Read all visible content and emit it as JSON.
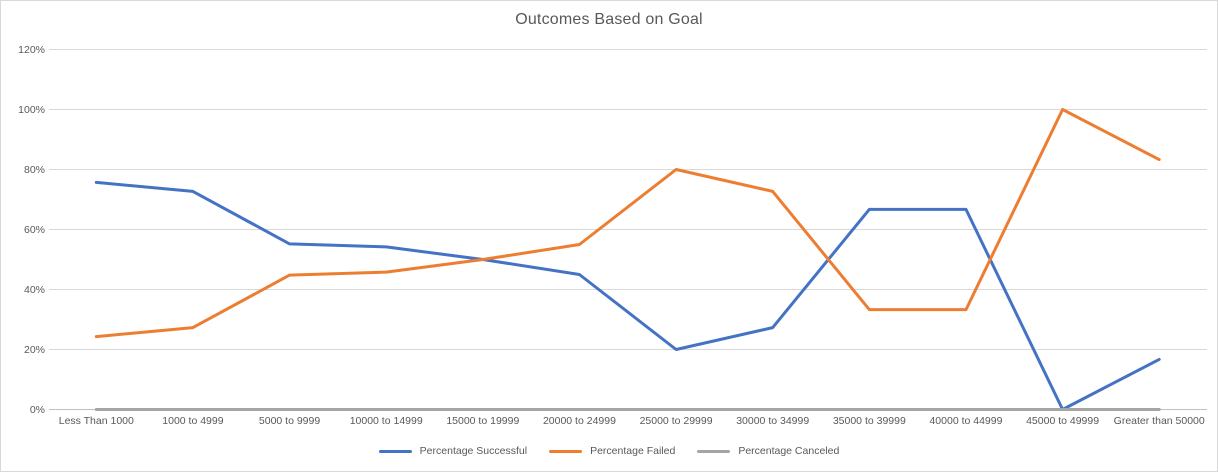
{
  "chart_data": {
    "type": "line",
    "title": "Outcomes Based on Goal",
    "categories": [
      "Less Than 1000",
      "1000 to 4999",
      "5000 to 9999",
      "10000 to 14999",
      "15000 to 19999",
      "20000 to 24999",
      "25000 to 29999",
      "30000 to 34999",
      "35000 to 39999",
      "40000 to 44999",
      "45000 to 49999",
      "Greater than 50000"
    ],
    "series": [
      {
        "name": "Percentage Successful",
        "color": "#4472C4",
        "values": [
          75.7,
          72.7,
          55.2,
          54.2,
          50.0,
          45.0,
          20.0,
          27.3,
          66.7,
          66.7,
          0.0,
          16.7
        ]
      },
      {
        "name": "Percentage Failed",
        "color": "#ED7D31",
        "values": [
          24.3,
          27.3,
          44.8,
          45.8,
          50.0,
          55.0,
          80.0,
          72.7,
          33.3,
          33.3,
          100.0,
          83.3
        ]
      },
      {
        "name": "Percentage Canceled",
        "color": "#A5A5A5",
        "values": [
          0.0,
          0.0,
          0.0,
          0.0,
          0.0,
          0.0,
          0.0,
          0.0,
          0.0,
          0.0,
          0.0,
          0.0
        ]
      }
    ],
    "y_ticks": [
      "0%",
      "20%",
      "40%",
      "60%",
      "80%",
      "100%",
      "120%"
    ],
    "ylim": [
      0,
      120
    ],
    "y_tick_step": 20,
    "grid": true,
    "legend_position": "bottom"
  },
  "colors": {
    "gridline": "#D9D9D9",
    "axis": "#BFBFBF",
    "text": "#595959",
    "background": "#FFFFFF",
    "border": "#D9D9D9"
  }
}
